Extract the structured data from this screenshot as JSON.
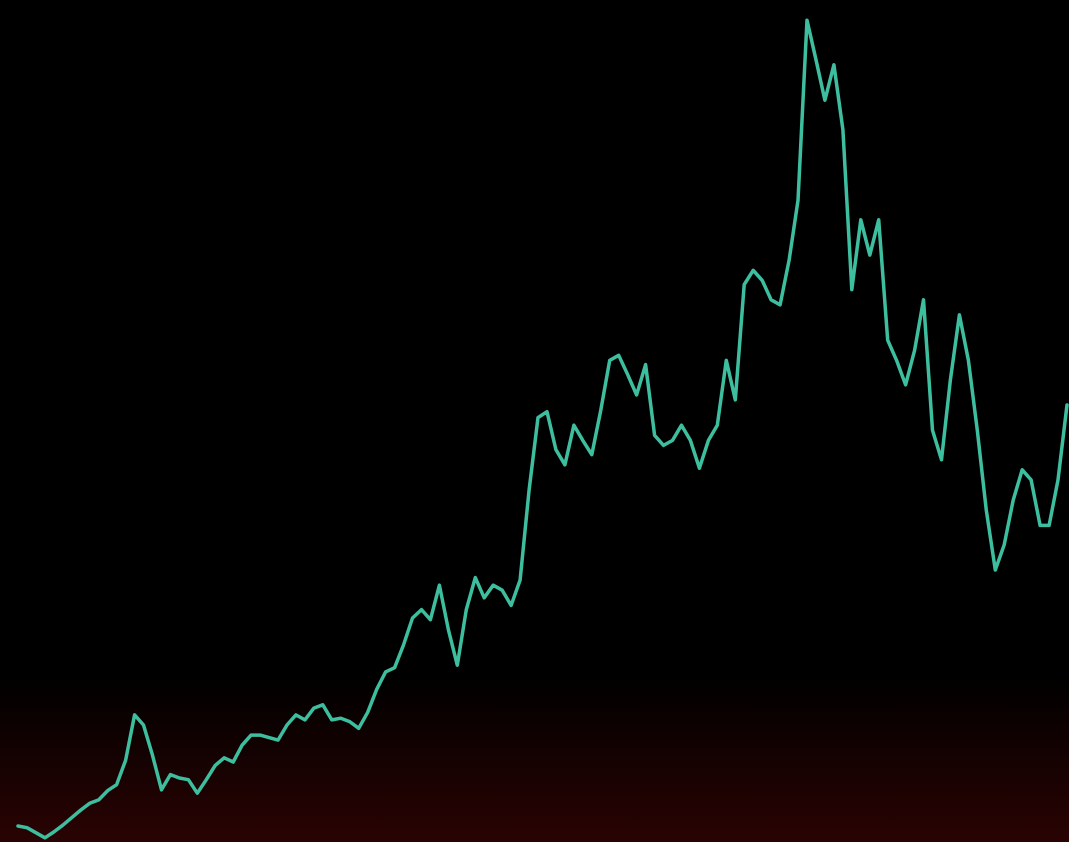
{
  "chart_data": {
    "type": "line",
    "color": "#3dbf9f",
    "ylim": [
      0,
      100
    ],
    "values": [
      1.9,
      1.7,
      1.1,
      0.5,
      1.2,
      2.0,
      2.9,
      3.8,
      4.6,
      5.0,
      6.1,
      6.8,
      9.7,
      15.1,
      13.9,
      10.3,
      6.2,
      8.0,
      7.6,
      7.4,
      5.8,
      7.4,
      9.1,
      10.0,
      9.5,
      11.5,
      12.7,
      12.7,
      12.4,
      12.1,
      13.9,
      15.1,
      14.5,
      15.9,
      16.3,
      14.5,
      14.7,
      14.3,
      13.5,
      15.4,
      18.1,
      20.2,
      20.7,
      23.4,
      26.6,
      27.6,
      26.4,
      30.5,
      25.2,
      21.0,
      27.6,
      31.4,
      29.0,
      30.5,
      29.9,
      28.1,
      31.1,
      41.8,
      50.4,
      51.1,
      46.6,
      44.8,
      49.5,
      47.7,
      46.0,
      51.3,
      57.2,
      57.8,
      55.5,
      53.1,
      56.7,
      48.3,
      47.1,
      47.7,
      49.5,
      47.7,
      44.4,
      47.7,
      49.5,
      57.2,
      52.5,
      66.2,
      67.9,
      66.7,
      64.4,
      63.8,
      69.1,
      76.2,
      97.6,
      92.9,
      88.1,
      92.3,
      84.6,
      65.6,
      73.9,
      69.7,
      73.9,
      59.6,
      57.2,
      54.3,
      58.4,
      64.4,
      48.9,
      45.4,
      54.9,
      62.6,
      57.2,
      48.9,
      39.4,
      32.3,
      35.3,
      40.6,
      44.2,
      43.0,
      37.6,
      37.6,
      43.0,
      51.9
    ]
  }
}
